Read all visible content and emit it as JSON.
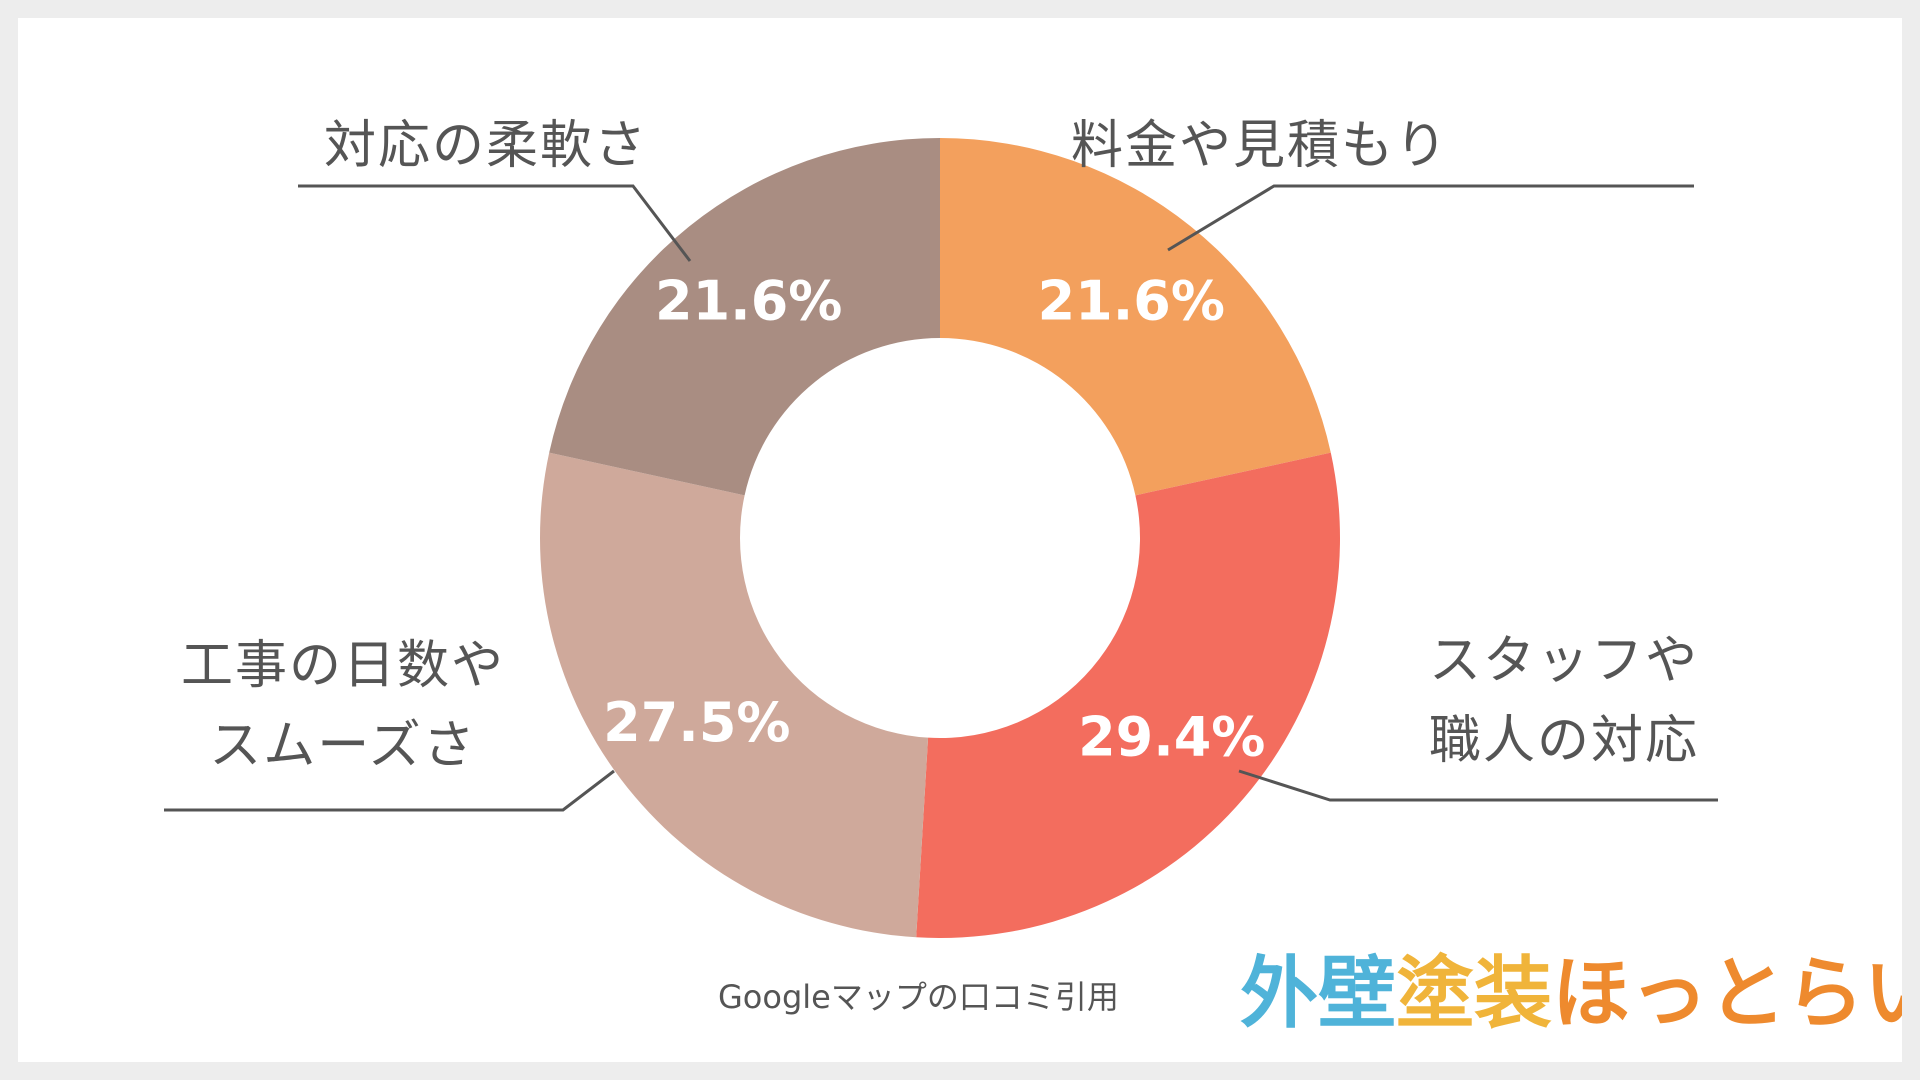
{
  "chart_data": {
    "type": "pie",
    "variant": "donut",
    "slices": [
      {
        "label": "料金や見積もり",
        "label_lines": [
          "料金や見積もり"
        ],
        "value": 21.6,
        "display": "21.6%",
        "color": "#f3a05d"
      },
      {
        "label": "スタッフや職人の対応",
        "label_lines": [
          "スタッフや",
          "職人の対応"
        ],
        "value": 29.4,
        "display": "29.4%",
        "color": "#f36d5e"
      },
      {
        "label": "工事の日数やスムーズさ",
        "label_lines": [
          "工事の日数や",
          "スムーズさ"
        ],
        "value": 27.5,
        "display": "27.5%",
        "color": "#cfa99b"
      },
      {
        "label": "対応の柔軟さ",
        "label_lines": [
          "対応の柔軟さ"
        ],
        "value": 21.6,
        "display": "21.6%",
        "color": "#a98d82"
      }
    ],
    "start": "12 o'clock",
    "direction": "clockwise",
    "legend": "none (callout labels with leader lines)"
  },
  "source_note": "Googleマップの口コミ引用",
  "logo": {
    "text": "外壁塗装ほっとらいん",
    "colors": [
      "#4fb3d9",
      "#f0b43a",
      "#ee8a2e"
    ]
  }
}
